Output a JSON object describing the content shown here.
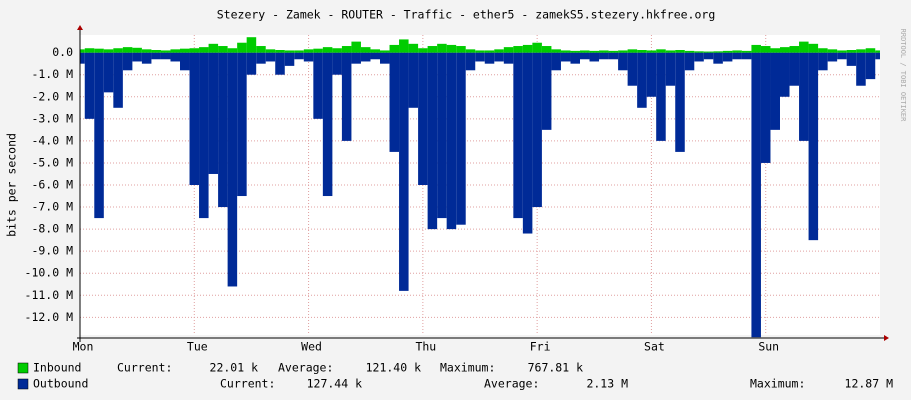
{
  "chart_data": {
    "type": "area",
    "title": "Stezery - Zamek - ROUTER - Traffic - ether5 - zamekS5.stezery.hkfree.org",
    "y_label": "bits per second",
    "side_text": "RRDTOOL / TOBI OETIKER",
    "xlim": [
      0,
      168
    ],
    "xticks": [
      {
        "value": 0,
        "label": "Mon"
      },
      {
        "value": 24,
        "label": "Tue"
      },
      {
        "value": 48,
        "label": "Wed"
      },
      {
        "value": 72,
        "label": "Thu"
      },
      {
        "value": 96,
        "label": "Fri"
      },
      {
        "value": 120,
        "label": "Sat"
      },
      {
        "value": 144,
        "label": "Sun"
      }
    ],
    "ylim": [
      -12800000,
      800000
    ],
    "yticks": [
      {
        "value": 0,
        "label": "0.0"
      },
      {
        "value": -1000000,
        "label": "-1.0 M"
      },
      {
        "value": -2000000,
        "label": "-2.0 M"
      },
      {
        "value": -3000000,
        "label": "-3.0 M"
      },
      {
        "value": -4000000,
        "label": "-4.0 M"
      },
      {
        "value": -5000000,
        "label": "-5.0 M"
      },
      {
        "value": -6000000,
        "label": "-6.0 M"
      },
      {
        "value": -7000000,
        "label": "-7.0 M"
      },
      {
        "value": -8000000,
        "label": "-8.0 M"
      },
      {
        "value": -9000000,
        "label": "-9.0 M"
      },
      {
        "value": -10000000,
        "label": "-10.0 M"
      },
      {
        "value": -11000000,
        "label": "-11.0 M"
      },
      {
        "value": -12000000,
        "label": "-12.0 M"
      }
    ],
    "grid": true,
    "x": [
      0,
      2,
      4,
      6,
      8,
      10,
      12,
      14,
      16,
      18,
      20,
      22,
      24,
      26,
      28,
      30,
      32,
      34,
      36,
      38,
      40,
      42,
      44,
      46,
      48,
      50,
      52,
      54,
      56,
      58,
      60,
      62,
      64,
      66,
      68,
      70,
      72,
      74,
      76,
      78,
      80,
      82,
      84,
      86,
      88,
      90,
      92,
      94,
      96,
      98,
      100,
      102,
      104,
      106,
      108,
      110,
      112,
      114,
      116,
      118,
      120,
      122,
      124,
      126,
      128,
      130,
      132,
      134,
      136,
      138,
      140,
      142,
      144,
      146,
      148,
      150,
      152,
      154,
      156,
      158,
      160,
      162,
      164,
      166,
      168
    ],
    "series": [
      {
        "name": "Outbound",
        "color": "#002a97",
        "values": [
          -500000,
          -3000000,
          -7500000,
          -1800000,
          -2500000,
          -800000,
          -400000,
          -500000,
          -300000,
          -300000,
          -400000,
          -800000,
          -6000000,
          -7500000,
          -5500000,
          -7000000,
          -10600000,
          -6500000,
          -1000000,
          -500000,
          -400000,
          -1000000,
          -600000,
          -300000,
          -400000,
          -3000000,
          -6500000,
          -1000000,
          -4000000,
          -500000,
          -400000,
          -300000,
          -500000,
          -4500000,
          -10800000,
          -2500000,
          -6000000,
          -8000000,
          -7500000,
          -8000000,
          -7800000,
          -800000,
          -400000,
          -500000,
          -400000,
          -500000,
          -7500000,
          -8200000,
          -7000000,
          -3500000,
          -800000,
          -400000,
          -500000,
          -300000,
          -400000,
          -300000,
          -300000,
          -800000,
          -1500000,
          -2500000,
          -2000000,
          -4000000,
          -1500000,
          -4500000,
          -800000,
          -400000,
          -300000,
          -500000,
          -400000,
          -300000,
          -300000,
          -12900000,
          -5000000,
          -3500000,
          -2000000,
          -1500000,
          -4000000,
          -8500000,
          -800000,
          -400000,
          -300000,
          -600000,
          -1500000,
          -1200000,
          -300000
        ],
        "stats": [
          {
            "name": "Current:",
            "value": 127440,
            "label": "127.44 k"
          },
          {
            "name": "Average:",
            "value": 2130000,
            "label": "2.13 M"
          },
          {
            "name": "Maximum:",
            "value": 12870000,
            "label": "12.87 M"
          }
        ]
      },
      {
        "name": "Inbound",
        "color": "#00cc00",
        "values": [
          150000,
          200000,
          180000,
          150000,
          200000,
          250000,
          220000,
          150000,
          120000,
          100000,
          150000,
          180000,
          200000,
          250000,
          400000,
          300000,
          200000,
          450000,
          700000,
          300000,
          150000,
          120000,
          100000,
          100000,
          150000,
          180000,
          250000,
          200000,
          300000,
          500000,
          250000,
          150000,
          100000,
          350000,
          600000,
          400000,
          200000,
          300000,
          400000,
          350000,
          300000,
          150000,
          100000,
          100000,
          150000,
          250000,
          300000,
          350000,
          450000,
          300000,
          150000,
          100000,
          80000,
          100000,
          80000,
          100000,
          80000,
          100000,
          150000,
          120000,
          100000,
          150000,
          100000,
          120000,
          80000,
          60000,
          50000,
          60000,
          80000,
          100000,
          80000,
          350000,
          300000,
          200000,
          250000,
          300000,
          500000,
          400000,
          200000,
          150000,
          100000,
          120000,
          150000,
          200000,
          100000
        ],
        "stats": [
          {
            "name": "Current:",
            "value": 22010,
            "label": "22.01 k"
          },
          {
            "name": "Average:",
            "value": 121400,
            "label": "121.40 k"
          },
          {
            "name": "Maximum:",
            "value": 767810,
            "label": "767.81 k"
          }
        ]
      }
    ]
  }
}
